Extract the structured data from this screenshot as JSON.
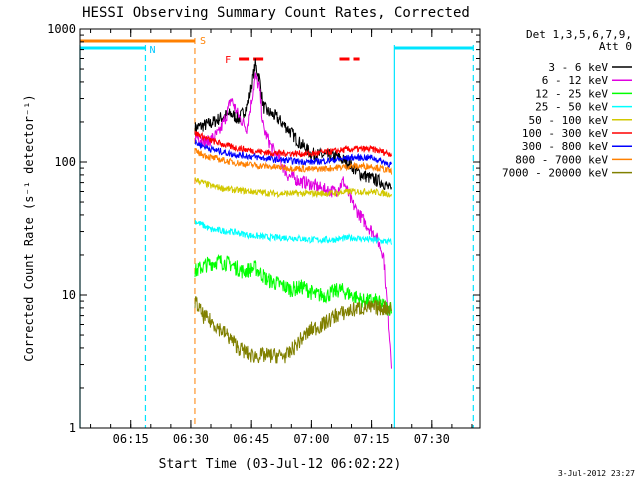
{
  "chart_data": {
    "type": "line",
    "title": "HESSI Observing Summary Count Rates, Corrected",
    "xlabel": "Start Time (03-Jul-12 06:02:22)",
    "ylabel": "Corrected Count Rate (s⁻¹ detector⁻¹)",
    "xlim": [
      "06:02:22",
      "07:42:00"
    ],
    "ylim": [
      1,
      1000
    ],
    "y_scale": "log",
    "xticks": [
      "06:15",
      "06:30",
      "06:45",
      "07:00",
      "07:15",
      "07:30"
    ],
    "yticks": [
      1,
      10,
      100,
      1000
    ],
    "legend_header": [
      "Det 1,3,5,6,7,9,",
      "Att 0"
    ],
    "legend_position": "right",
    "timestamp": "3-Jul-2012 23:27",
    "annotations": {
      "night_label": "N",
      "saa_label": "S",
      "flare_label": "F",
      "night_intervals": [
        [
          "06:02:22",
          "06:18:40"
        ],
        [
          "07:20:40",
          "07:40:20"
        ]
      ],
      "saa_interval": [
        "06:02:22",
        "06:31:00"
      ],
      "flare_intervals": [
        [
          "06:42:00",
          "06:48:30"
        ],
        [
          "07:07:00",
          "07:12:00"
        ]
      ],
      "data_start": "06:31:00",
      "data_end": "07:20:40"
    },
    "series": [
      {
        "name": "3 - 6 keV",
        "color": "#000000",
        "x": [
          "06:31",
          "06:35",
          "06:38",
          "06:40",
          "06:42",
          "06:44",
          "06:46",
          "06:47",
          "06:48",
          "06:49",
          "06:51",
          "06:54",
          "06:57",
          "07:00",
          "07:03",
          "07:06",
          "07:09",
          "07:12",
          "07:15",
          "07:18",
          "07:20"
        ],
        "values": [
          180,
          195,
          220,
          230,
          210,
          260,
          540,
          430,
          260,
          240,
          220,
          180,
          140,
          115,
          112,
          110,
          100,
          82,
          75,
          70,
          60
        ]
      },
      {
        "name": "6 - 12 keV",
        "color": "#e000e0",
        "x": [
          "06:31",
          "06:34",
          "06:37",
          "06:39",
          "06:40",
          "06:42",
          "06:44",
          "06:46",
          "06:47",
          "06:48",
          "06:50",
          "06:52",
          "06:54",
          "06:57",
          "07:00",
          "07:03",
          "07:06",
          "07:08",
          "07:10",
          "07:12",
          "07:14",
          "07:16",
          "07:18",
          "07:20"
        ],
        "values": [
          160,
          140,
          165,
          230,
          300,
          220,
          180,
          440,
          360,
          180,
          130,
          105,
          80,
          72,
          68,
          62,
          60,
          72,
          50,
          40,
          33,
          28,
          20,
          3
        ]
      },
      {
        "name": "12 - 25 keV",
        "color": "#00ff00",
        "x": [
          "06:31",
          "06:34",
          "06:37",
          "06:40",
          "06:43",
          "06:46",
          "06:49",
          "06:52",
          "06:55",
          "06:58",
          "07:01",
          "07:04",
          "07:07",
          "07:10",
          "07:13",
          "07:16",
          "07:19",
          "07:20"
        ],
        "values": [
          15,
          17,
          18,
          17,
          15,
          16,
          13,
          12,
          11,
          11.5,
          10,
          10,
          11,
          10,
          9,
          9,
          8,
          8
        ]
      },
      {
        "name": "25 - 50 keV",
        "color": "#00ffff",
        "x": [
          "06:31",
          "06:35",
          "06:40",
          "06:45",
          "06:50",
          "06:55",
          "07:00",
          "07:05",
          "07:10",
          "07:15",
          "07:20"
        ],
        "values": [
          36,
          31,
          30,
          28,
          27,
          27,
          26,
          26,
          27,
          26,
          25
        ]
      },
      {
        "name": "50 - 100 keV",
        "color": "#d2c800",
        "x": [
          "06:31",
          "06:35",
          "06:40",
          "06:45",
          "06:50",
          "06:55",
          "07:00",
          "07:05",
          "07:10",
          "07:15",
          "07:20"
        ],
        "values": [
          74,
          66,
          62,
          60,
          58,
          58,
          58,
          58,
          60,
          60,
          57
        ]
      },
      {
        "name": "100 - 300 keV",
        "color": "#ff0000",
        "x": [
          "06:31",
          "06:35",
          "06:40",
          "06:45",
          "06:50",
          "06:55",
          "07:00",
          "07:05",
          "07:10",
          "07:15",
          "07:20"
        ],
        "values": [
          165,
          145,
          130,
          122,
          117,
          116,
          115,
          120,
          125,
          125,
          115
        ]
      },
      {
        "name": "300 - 800 keV",
        "color": "#0000ff",
        "x": [
          "06:31",
          "06:35",
          "06:40",
          "06:45",
          "06:50",
          "06:55",
          "07:00",
          "07:05",
          "07:10",
          "07:15",
          "07:20"
        ],
        "values": [
          140,
          125,
          115,
          110,
          105,
          102,
          100,
          103,
          108,
          108,
          95
        ]
      },
      {
        "name": "800 - 7000 keV",
        "color": "#ff8000",
        "x": [
          "06:31",
          "06:35",
          "06:40",
          "06:45",
          "06:50",
          "06:55",
          "07:00",
          "07:05",
          "07:10",
          "07:15",
          "07:20"
        ],
        "values": [
          120,
          108,
          100,
          95,
          92,
          90,
          88,
          90,
          93,
          93,
          85
        ]
      },
      {
        "name": "7000 - 20000 keV",
        "color": "#808000",
        "x": [
          "06:31",
          "06:33",
          "06:36",
          "06:39",
          "06:42",
          "06:45",
          "06:48",
          "06:51",
          "06:54",
          "06:57",
          "07:00",
          "07:03",
          "07:06",
          "07:09",
          "07:12",
          "07:15",
          "07:18",
          "07:20"
        ],
        "values": [
          9,
          7,
          6,
          5,
          4,
          3.5,
          3.5,
          3.5,
          3.5,
          4.5,
          5.5,
          6,
          7,
          7.5,
          8,
          8,
          8,
          8
        ]
      }
    ]
  }
}
